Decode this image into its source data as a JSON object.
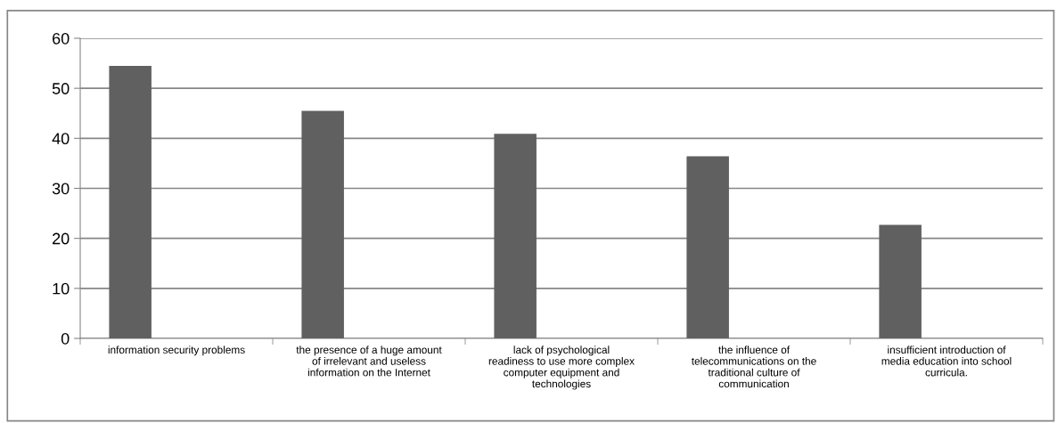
{
  "chart_data": {
    "type": "bar",
    "categories": [
      "information security problems",
      "the presence of a huge amount of irrelevant and useless information on the Internet",
      "lack of psychological readiness to use more complex computer equipment and technologies",
      "the influence of telecommunications on the traditional culture of communication",
      "insufficient introduction of media education into school curricula."
    ],
    "values": [
      54.5,
      45.5,
      40.9,
      36.4,
      22.7
    ],
    "color": "#606060",
    "ylim": [
      0,
      60
    ],
    "yticks": [
      0,
      10,
      20,
      30,
      40,
      50,
      60
    ],
    "grid": "y",
    "legend": false
  }
}
